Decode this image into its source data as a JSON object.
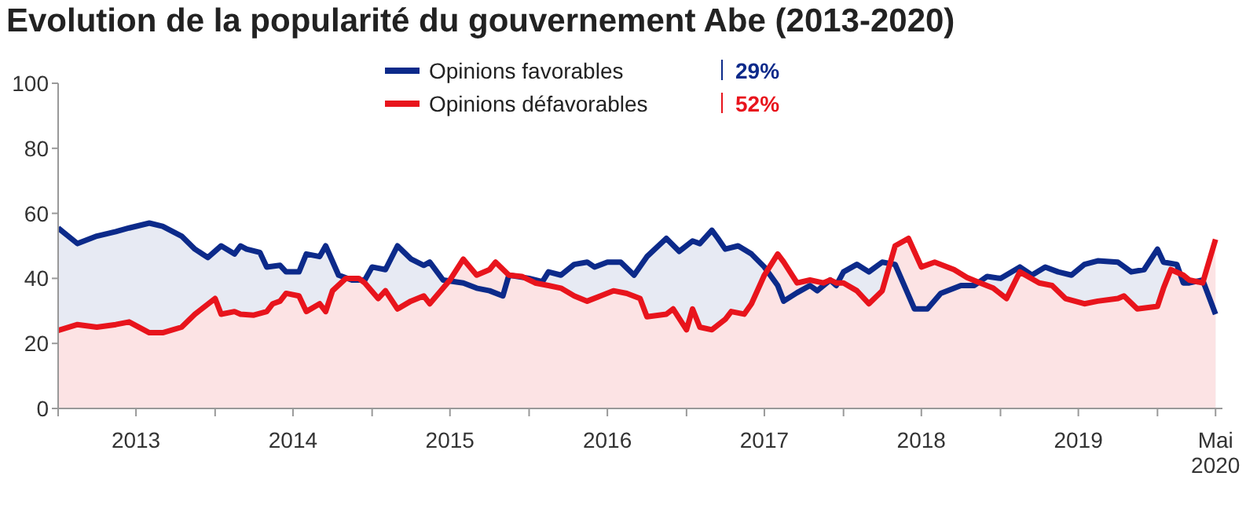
{
  "chart_data": {
    "type": "area",
    "title": "Evolution de la popularité du gouvernement Abe (2013-2020)",
    "series": [
      {
        "name": "Opinions favorables",
        "color": "#0c2a8a",
        "x": [
          "2013-01-01",
          "2013-02-15",
          "2013-04-01",
          "2013-05-15",
          "2013-06-15",
          "2013-08-01",
          "2013-09-01",
          "2013-10-15",
          "2013-11-15",
          "2013-12-15",
          "2014-01-15",
          "2014-02-15",
          "2014-03-01",
          "2014-03-15",
          "2014-04-15",
          "2014-05-01",
          "2014-06-01",
          "2014-06-15",
          "2014-07-15",
          "2014-08-01",
          "2014-09-01",
          "2014-09-15",
          "2014-10-15",
          "2014-11-15",
          "2014-12-15",
          "2015-01-01",
          "2015-02-01",
          "2015-03-01",
          "2015-04-01",
          "2015-05-01",
          "2015-05-15",
          "2015-06-15",
          "2015-08-01",
          "2015-09-01",
          "2015-10-01",
          "2015-11-01",
          "2015-11-15",
          "2016-01-01",
          "2016-02-01",
          "2016-02-15",
          "2016-03-15",
          "2016-04-15",
          "2016-05-15",
          "2016-06-01",
          "2016-07-01",
          "2016-08-01",
          "2016-09-01",
          "2016-10-01",
          "2016-11-15",
          "2016-12-15",
          "2017-01-15",
          "2017-02-01",
          "2017-03-01",
          "2017-03-15",
          "2017-04-01",
          "2017-05-01",
          "2017-06-01",
          "2017-07-01",
          "2017-08-01",
          "2017-08-15",
          "2017-09-15",
          "2017-10-15",
          "2017-11-01",
          "2017-12-01",
          "2017-12-15",
          "2018-01-01",
          "2018-02-01",
          "2018-03-01",
          "2018-04-01",
          "2018-05-01",
          "2018-06-15",
          "2018-07-15",
          "2018-08-15",
          "2018-10-01",
          "2018-11-01",
          "2018-12-01",
          "2019-01-01",
          "2019-02-15",
          "2019-03-15",
          "2019-04-15",
          "2019-05-15",
          "2019-06-15",
          "2019-07-15",
          "2019-08-15",
          "2019-10-01",
          "2019-11-01",
          "2019-12-01",
          "2020-01-01",
          "2020-01-15",
          "2020-02-15",
          "2020-03-01",
          "2020-03-15",
          "2020-04-15",
          "2020-05-15"
        ],
        "values": [
          55.5,
          50.7,
          53,
          54.4,
          55.5,
          57,
          56,
          53,
          49,
          46.4,
          50,
          47.5,
          50,
          49,
          48,
          43.5,
          44,
          42,
          42,
          47.5,
          46.7,
          50,
          41,
          39.5,
          39.5,
          43.5,
          42.7,
          50,
          46,
          44,
          45,
          39.5,
          38.6,
          37,
          36.2,
          34.6,
          41,
          40,
          39,
          42,
          41,
          44.3,
          45,
          43.5,
          45,
          45,
          41,
          46.7,
          52.3,
          48.3,
          51.5,
          50.7,
          54.8,
          52.3,
          49,
          50,
          47.5,
          43.5,
          37.8,
          33,
          35.6,
          37.8,
          36.2,
          39.5,
          37.8,
          42,
          44.3,
          42,
          45,
          44.3,
          30.6,
          30.6,
          35.4,
          37.8,
          37.8,
          40.6,
          40,
          43.5,
          41,
          43.5,
          42,
          41,
          44.3,
          45.4,
          45,
          42,
          42.7,
          49,
          45,
          44.3,
          38.6,
          38.6,
          39.5,
          29
        ]
      },
      {
        "name": "Opinions défavorables",
        "color": "#e8141c",
        "x": [
          "2013-01-01",
          "2013-02-15",
          "2013-04-01",
          "2013-05-15",
          "2013-06-15",
          "2013-08-01",
          "2013-09-01",
          "2013-10-15",
          "2013-11-15",
          "2014-01-01",
          "2014-01-15",
          "2014-02-15",
          "2014-03-01",
          "2014-04-01",
          "2014-05-01",
          "2014-05-15",
          "2014-06-01",
          "2014-06-15",
          "2014-07-15",
          "2014-08-01",
          "2014-09-01",
          "2014-09-15",
          "2014-10-01",
          "2014-11-01",
          "2014-12-01",
          "2014-12-15",
          "2015-01-15",
          "2015-02-01",
          "2015-03-01",
          "2015-04-01",
          "2015-05-01",
          "2015-05-15",
          "2015-06-15",
          "2015-07-01",
          "2015-08-01",
          "2015-09-01",
          "2015-10-01",
          "2015-10-15",
          "2015-11-15",
          "2015-12-15",
          "2016-01-15",
          "2016-02-15",
          "2016-03-15",
          "2016-04-15",
          "2016-05-15",
          "2016-06-15",
          "2016-07-15",
          "2016-08-15",
          "2016-09-15",
          "2016-10-01",
          "2016-11-15",
          "2016-12-01",
          "2017-01-01",
          "2017-01-15",
          "2017-02-01",
          "2017-03-01",
          "2017-04-01",
          "2017-04-15",
          "2017-05-15",
          "2017-06-01",
          "2017-07-01",
          "2017-08-01",
          "2017-08-15",
          "2017-09-15",
          "2017-10-15",
          "2017-11-15",
          "2017-12-01",
          "2017-12-15",
          "2018-01-01",
          "2018-02-01",
          "2018-03-01",
          "2018-04-01",
          "2018-05-01",
          "2018-06-01",
          "2018-07-01",
          "2018-08-01",
          "2018-09-15",
          "2018-10-15",
          "2018-11-15",
          "2018-12-15",
          "2019-01-15",
          "2019-02-15",
          "2019-04-01",
          "2019-05-01",
          "2019-06-01",
          "2019-07-15",
          "2019-08-15",
          "2019-10-01",
          "2019-10-15",
          "2019-11-15",
          "2020-01-01",
          "2020-01-15",
          "2020-02-01",
          "2020-03-01",
          "2020-03-15",
          "2020-04-15",
          "2020-05-15"
        ],
        "values": [
          24,
          25.8,
          25,
          25.8,
          26.6,
          23.3,
          23.3,
          25,
          29,
          33.8,
          29,
          29.8,
          29,
          28.7,
          29.8,
          32.2,
          33,
          35.4,
          34.6,
          29.8,
          32.2,
          29.8,
          36.2,
          40,
          40,
          38.6,
          33.8,
          36.2,
          30.6,
          33,
          34.6,
          32.2,
          37,
          39.5,
          45.9,
          41,
          42.7,
          45,
          41,
          40.6,
          38.6,
          37.8,
          37,
          34.6,
          33,
          34.6,
          36.2,
          35.4,
          33.8,
          28.2,
          29,
          30.6,
          24.2,
          30.6,
          25,
          24.2,
          27.4,
          29.8,
          29,
          32.2,
          41,
          47.5,
          45,
          38.6,
          39.5,
          38.6,
          39.5,
          38.6,
          38.6,
          36.2,
          32.2,
          36.2,
          50,
          52.3,
          43.5,
          45,
          42.7,
          40.3,
          38.6,
          37,
          33.8,
          42,
          38.6,
          37.8,
          33.8,
          32.2,
          33,
          33.8,
          34.6,
          30.6,
          31.4,
          37,
          42.7,
          41,
          39.5,
          38.6,
          52
        ]
      }
    ],
    "annotations": [
      "29%",
      "52%"
    ],
    "xlim": [
      "2013-01-01",
      "2020-05-31"
    ],
    "xticks": [
      {
        "value": "2013-01-01",
        "label": null
      },
      {
        "value": "2013-07-01",
        "label": "2013"
      },
      {
        "value": "2014-01-01",
        "label": null
      },
      {
        "value": "2014-07-01",
        "label": "2014"
      },
      {
        "value": "2015-01-01",
        "label": null
      },
      {
        "value": "2015-07-01",
        "label": "2015"
      },
      {
        "value": "2016-01-01",
        "label": null
      },
      {
        "value": "2016-07-01",
        "label": "2016"
      },
      {
        "value": "2017-01-01",
        "label": null
      },
      {
        "value": "2017-07-01",
        "label": "2017"
      },
      {
        "value": "2018-01-01",
        "label": null
      },
      {
        "value": "2018-07-01",
        "label": "2018"
      },
      {
        "value": "2019-01-01",
        "label": null
      },
      {
        "value": "2019-07-01",
        "label": "2019"
      },
      {
        "value": "2020-01-01",
        "label": null
      },
      {
        "value": "2020-05-15",
        "label": "Mai 2020"
      }
    ],
    "ylim": [
      0,
      100
    ],
    "yticks": [
      0,
      20,
      40,
      60,
      80,
      100
    ],
    "grid": false,
    "legend": "top"
  }
}
